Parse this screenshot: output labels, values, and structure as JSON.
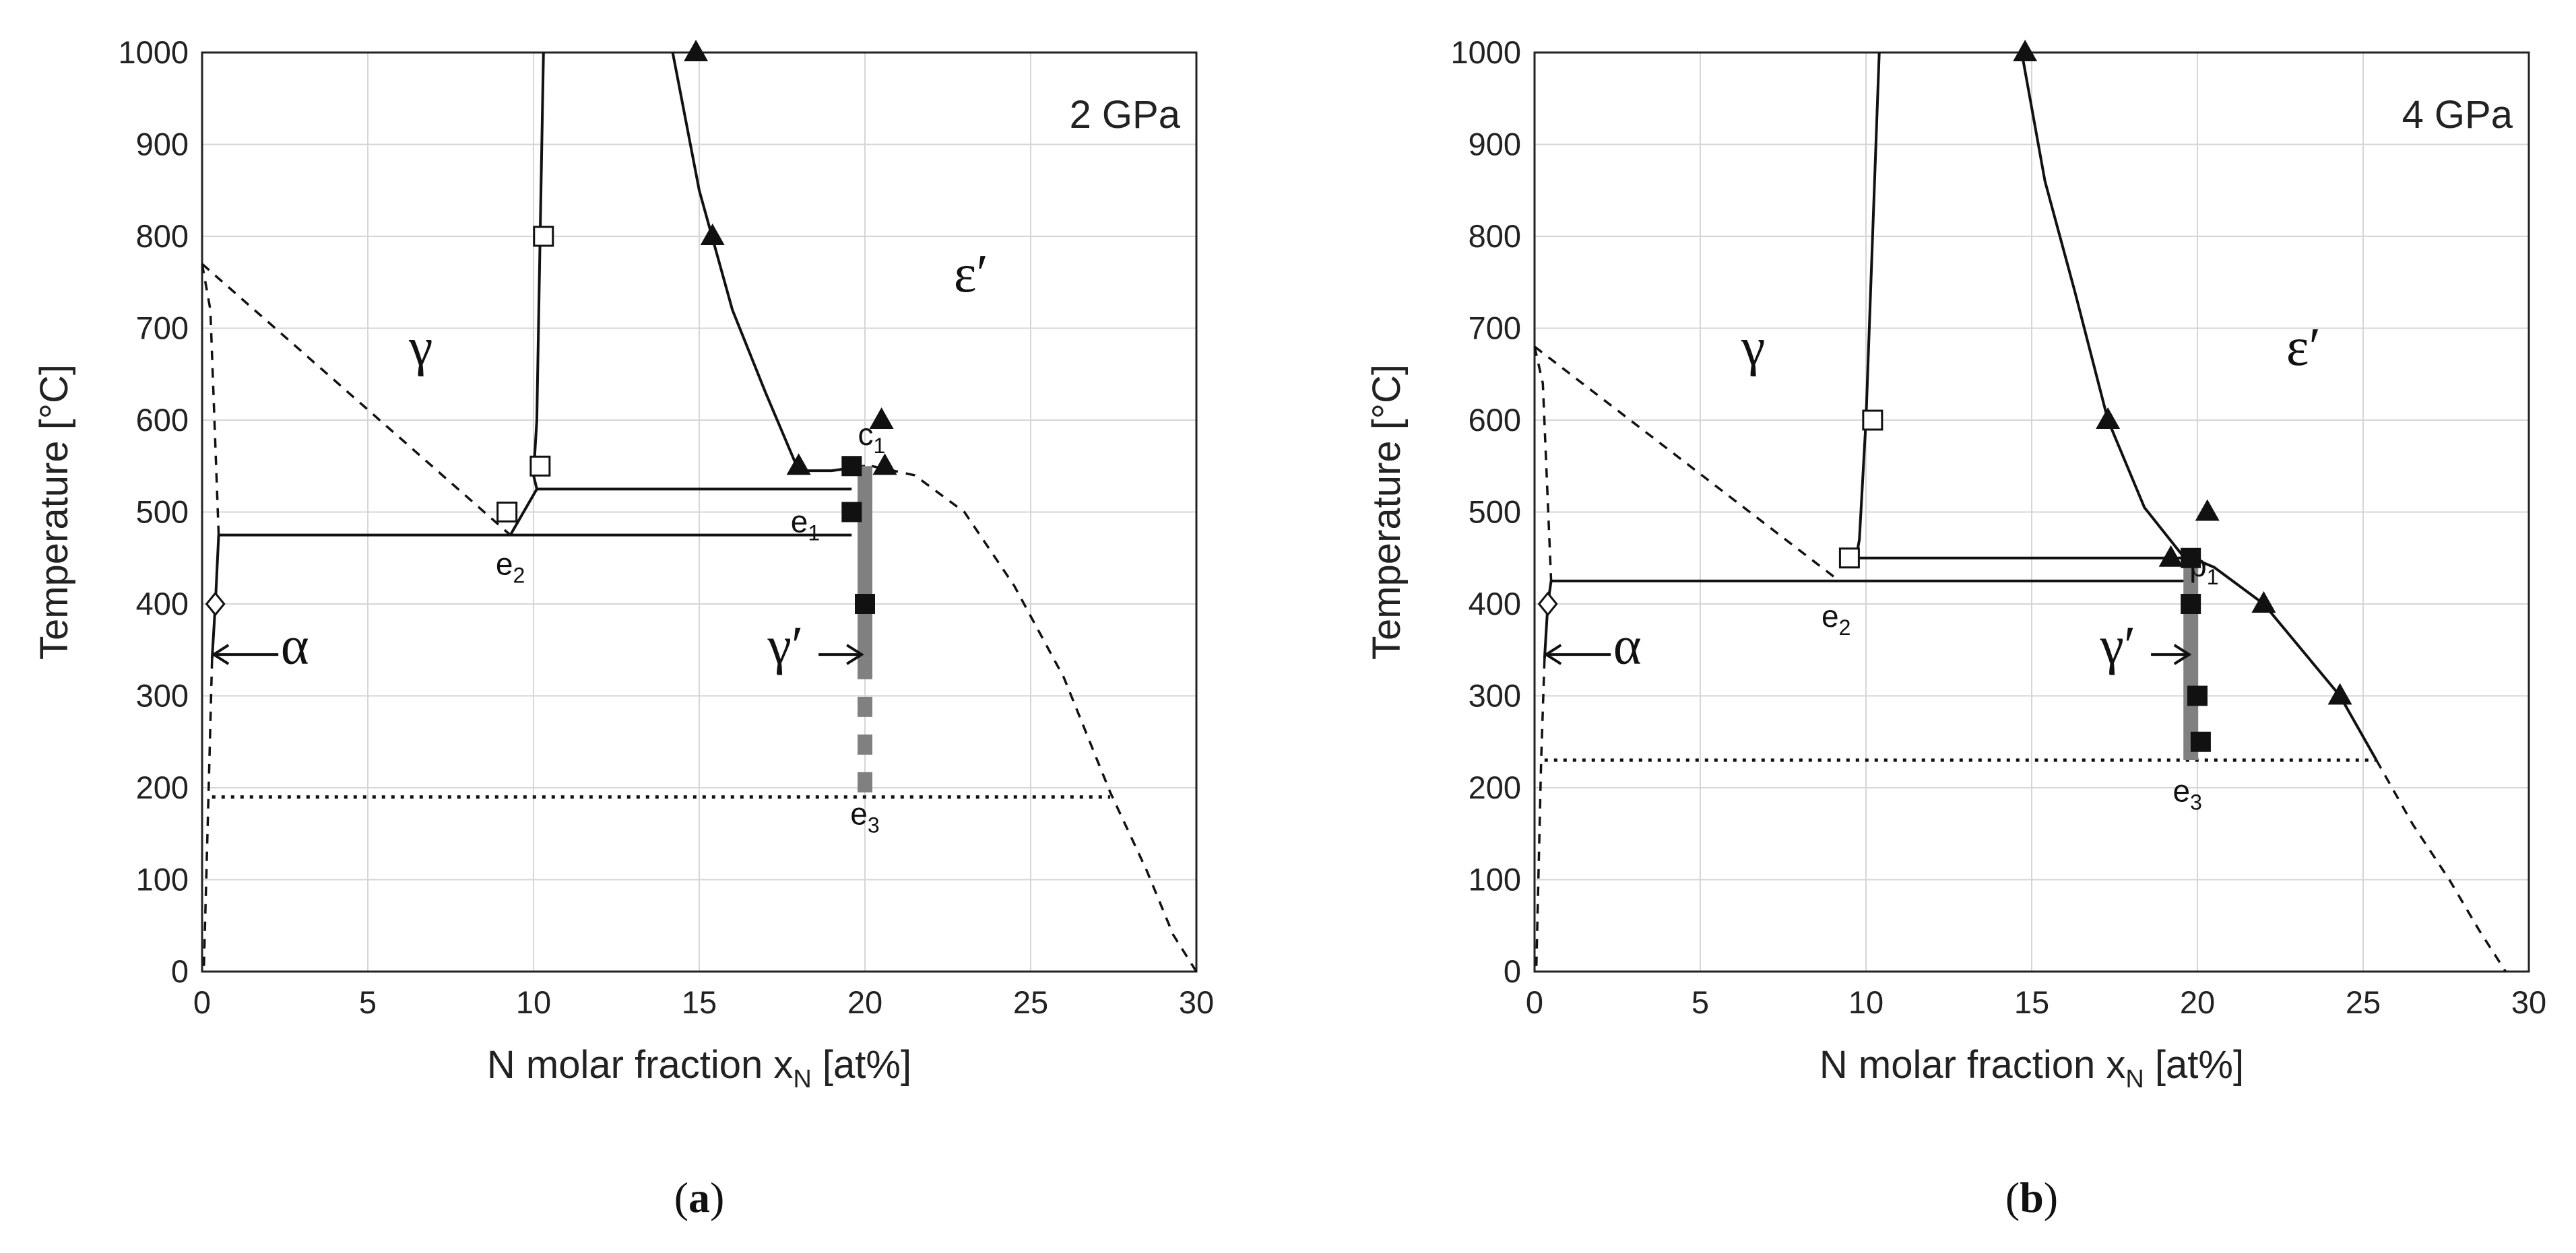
{
  "chart_data": [
    {
      "type": "scatter",
      "panel_caption": "a",
      "pressure_label": "2 GPa",
      "xlabel": "N molar fraction x",
      "xlabel_sub": "N",
      "xlabel_unit": " [at%]",
      "ylabel": "Temperature [°C]",
      "xlim": [
        0,
        30
      ],
      "ylim": [
        0,
        1000
      ],
      "xticks": [
        0,
        5,
        10,
        15,
        20,
        25,
        30
      ],
      "yticks": [
        0,
        100,
        200,
        300,
        400,
        500,
        600,
        700,
        800,
        900,
        1000
      ],
      "grid": true,
      "phase_labels": [
        {
          "text": "γ",
          "x": 6.6,
          "y": 660
        },
        {
          "text": "ε′",
          "x": 23.2,
          "y": 740
        },
        {
          "text": "α",
          "x": 2.8,
          "y": 335
        },
        {
          "text": "γ′",
          "x": 17.6,
          "y": 335
        }
      ],
      "point_labels": [
        {
          "base": "c",
          "sub": "1",
          "x": 20.2,
          "y": 573
        },
        {
          "base": "e",
          "sub": "1",
          "x": 18.2,
          "y": 478
        },
        {
          "base": "e",
          "sub": "2",
          "x": 9.3,
          "y": 432
        },
        {
          "base": "e",
          "sub": "3",
          "x": 20.0,
          "y": 160
        }
      ],
      "series": [
        {
          "name": "open squares",
          "marker": "open-square",
          "points": [
            [
              10.3,
              800
            ],
            [
              10.2,
              550
            ],
            [
              9.2,
              500
            ]
          ]
        },
        {
          "name": "filled squares",
          "marker": "filled-square",
          "points": [
            [
              19.6,
              550
            ],
            [
              19.6,
              500
            ],
            [
              20.0,
              400
            ]
          ]
        },
        {
          "name": "filled triangles",
          "marker": "filled-triangle",
          "points": [
            [
              14.9,
              1000
            ],
            [
              15.4,
              800
            ],
            [
              18.0,
              550
            ],
            [
              20.5,
              600
            ],
            [
              20.6,
              550
            ]
          ]
        },
        {
          "name": "open diamond",
          "marker": "open-diamond",
          "points": [
            [
              0.4,
              400
            ]
          ]
        }
      ],
      "lines": [
        {
          "name": "gamma boundary",
          "style": "solid",
          "points": [
            [
              10.3,
              1000
            ],
            [
              10.2,
              800
            ],
            [
              10.1,
              600
            ],
            [
              10.0,
              540
            ],
            [
              10.1,
              525
            ]
          ]
        },
        {
          "name": "epsilon boundary",
          "style": "solid",
          "points": [
            [
              14.2,
              1000
            ],
            [
              15.0,
              850
            ],
            [
              16.0,
              720
            ],
            [
              17.0,
              630
            ],
            [
              18.0,
              545
            ],
            [
              19.0,
              545
            ],
            [
              20.0,
              550
            ]
          ]
        },
        {
          "name": "alpha solvus",
          "style": "solid",
          "points": [
            [
              0.5,
              475
            ],
            [
              0.4,
              400
            ],
            [
              0.3,
              340
            ]
          ]
        },
        {
          "name": "gamma-prime / gamma-e1 tie line",
          "style": "solid",
          "points": [
            [
              10.1,
              525
            ],
            [
              19.6,
              525
            ]
          ]
        },
        {
          "name": "e2 eutectoid line",
          "style": "solid",
          "points": [
            [
              0.5,
              475
            ],
            [
              19.6,
              475
            ]
          ]
        },
        {
          "name": "gamma to e2 line",
          "style": "solid",
          "points": [
            [
              9.3,
              475
            ],
            [
              10.1,
              525
            ]
          ]
        },
        {
          "name": "gamma eutectoid dashed",
          "style": "dashed",
          "points": [
            [
              0,
              770
            ],
            [
              9.3,
              475
            ]
          ]
        },
        {
          "name": "alpha dashed",
          "style": "dashed",
          "points": [
            [
              0,
              770
            ],
            [
              0.25,
              720
            ],
            [
              0.5,
              475
            ]
          ]
        },
        {
          "name": "alpha low dashed",
          "style": "dashed",
          "points": [
            [
              0.3,
              340
            ],
            [
              0.2,
              200
            ],
            [
              0.05,
              0
            ]
          ]
        },
        {
          "name": "epsilon dashed",
          "style": "dashed",
          "points": [
            [
              20.2,
              550
            ],
            [
              21.5,
              540
            ],
            [
              23.0,
              500
            ],
            [
              24.5,
              420
            ],
            [
              26.0,
              320
            ],
            [
              27.4,
              195
            ],
            [
              28.5,
              110
            ],
            [
              29.3,
              40
            ],
            [
              30.0,
              0
            ]
          ]
        },
        {
          "name": "e3 dotted",
          "style": "dotted",
          "points": [
            [
              0.3,
              190
            ],
            [
              27.4,
              190
            ]
          ]
        },
        {
          "name": "gamma-prime bar",
          "style": "thick-grey",
          "points": [
            [
              20.0,
              550
            ],
            [
              20.0,
              340
            ]
          ]
        },
        {
          "name": "gamma-prime bar dashed",
          "style": "thick-grey-dashed",
          "points": [
            [
              20.0,
              340
            ],
            [
              20.0,
              190
            ]
          ]
        }
      ],
      "arrows": [
        {
          "label": "α",
          "from": [
            2.3,
            345
          ],
          "to": [
            0.35,
            345
          ]
        },
        {
          "label": "γ′",
          "from": [
            18.6,
            345
          ],
          "to": [
            19.9,
            345
          ]
        }
      ]
    },
    {
      "type": "scatter",
      "panel_caption": "b",
      "pressure_label": "4 GPa",
      "xlabel": "N molar fraction x",
      "xlabel_sub": "N",
      "xlabel_unit": " [at%]",
      "ylabel": "Temperature [°C]",
      "xlim": [
        0,
        30
      ],
      "ylim": [
        0,
        1000
      ],
      "xticks": [
        0,
        5,
        10,
        15,
        20,
        25,
        30
      ],
      "yticks": [
        0,
        100,
        200,
        300,
        400,
        500,
        600,
        700,
        800,
        900,
        1000
      ],
      "grid": true,
      "phase_labels": [
        {
          "text": "γ",
          "x": 6.6,
          "y": 660
        },
        {
          "text": "ε′",
          "x": 23.2,
          "y": 660
        },
        {
          "text": "α",
          "x": 2.8,
          "y": 335
        },
        {
          "text": "γ′",
          "x": 17.6,
          "y": 335
        }
      ],
      "point_labels": [
        {
          "base": "p",
          "sub": "1",
          "x": 20.2,
          "y": 430
        },
        {
          "base": "e",
          "sub": "2",
          "x": 9.1,
          "y": 375
        },
        {
          "base": "e",
          "sub": "3",
          "x": 19.7,
          "y": 185
        }
      ],
      "series": [
        {
          "name": "open squares",
          "marker": "open-square",
          "points": [
            [
              10.2,
              600
            ],
            [
              9.5,
              450
            ]
          ]
        },
        {
          "name": "filled squares",
          "marker": "filled-square",
          "points": [
            [
              19.8,
              450
            ],
            [
              19.8,
              400
            ],
            [
              20.0,
              300
            ],
            [
              20.1,
              250
            ]
          ]
        },
        {
          "name": "filled triangles",
          "marker": "filled-triangle",
          "points": [
            [
              14.8,
              1000
            ],
            [
              17.3,
              600
            ],
            [
              19.2,
              450
            ],
            [
              20.3,
              500
            ],
            [
              22.0,
              400
            ],
            [
              24.3,
              300
            ]
          ]
        },
        {
          "name": "open diamond",
          "marker": "open-diamond",
          "points": [
            [
              0.4,
              400
            ]
          ]
        }
      ],
      "lines": [
        {
          "name": "gamma boundary",
          "style": "solid",
          "points": [
            [
              10.4,
              1000
            ],
            [
              10.2,
              800
            ],
            [
              10.0,
              600
            ],
            [
              9.8,
              470
            ],
            [
              9.7,
              450
            ]
          ]
        },
        {
          "name": "epsilon boundary",
          "style": "solid",
          "points": [
            [
              14.7,
              1000
            ],
            [
              15.4,
              860
            ],
            [
              16.3,
              740
            ],
            [
              17.3,
              600
            ],
            [
              18.4,
              505
            ],
            [
              19.5,
              455
            ],
            [
              20.5,
              440
            ],
            [
              22.0,
              400
            ],
            [
              24.3,
              300
            ],
            [
              25.4,
              230
            ]
          ]
        },
        {
          "name": "alpha solvus",
          "style": "solid",
          "points": [
            [
              0.5,
              425
            ],
            [
              0.4,
              400
            ],
            [
              0.3,
              340
            ]
          ]
        },
        {
          "name": "p1 tie line",
          "style": "solid",
          "points": [
            [
              9.7,
              450
            ],
            [
              19.8,
              450
            ]
          ]
        },
        {
          "name": "e2 eutectoid line",
          "style": "solid",
          "points": [
            [
              0.5,
              425
            ],
            [
              19.8,
              425
            ]
          ]
        },
        {
          "name": "gamma eutectoid dashed",
          "style": "dashed",
          "points": [
            [
              0,
              680
            ],
            [
              9.2,
              425
            ]
          ]
        },
        {
          "name": "alpha dashed",
          "style": "dashed",
          "points": [
            [
              0,
              680
            ],
            [
              0.25,
              640
            ],
            [
              0.5,
              425
            ]
          ]
        },
        {
          "name": "alpha low dashed",
          "style": "dashed",
          "points": [
            [
              0.3,
              340
            ],
            [
              0.2,
              230
            ],
            [
              0.05,
              0
            ]
          ]
        },
        {
          "name": "epsilon dashed",
          "style": "dashed",
          "points": [
            [
              25.4,
              230
            ],
            [
              26.5,
              160
            ],
            [
              27.6,
              100
            ],
            [
              28.5,
              45
            ],
            [
              29.3,
              0
            ]
          ]
        },
        {
          "name": "e3 dotted",
          "style": "dotted",
          "points": [
            [
              0.3,
              230
            ],
            [
              25.4,
              230
            ]
          ]
        },
        {
          "name": "gamma-prime bar",
          "style": "thick-grey",
          "points": [
            [
              19.8,
              450
            ],
            [
              19.8,
              230
            ]
          ]
        }
      ],
      "arrows": [
        {
          "label": "α",
          "from": [
            2.3,
            345
          ],
          "to": [
            0.35,
            345
          ]
        },
        {
          "label": "γ′",
          "from": [
            18.6,
            345
          ],
          "to": [
            19.75,
            345
          ]
        }
      ]
    }
  ]
}
